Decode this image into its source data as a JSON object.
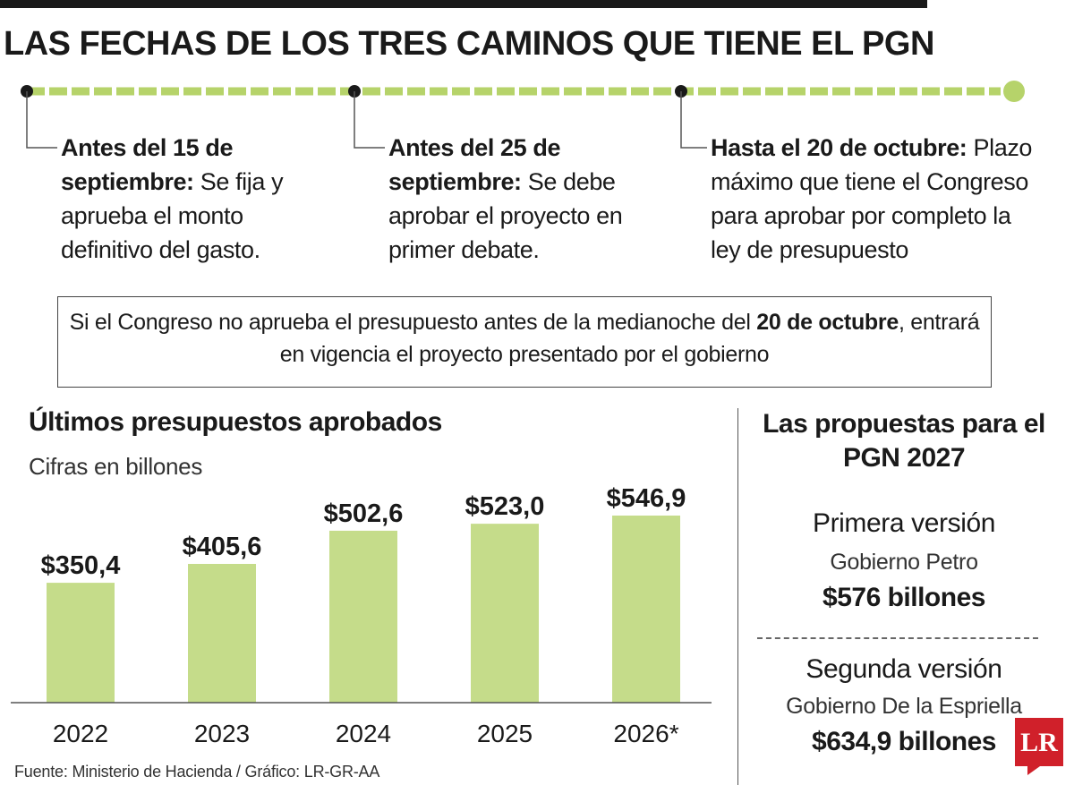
{
  "title": "LAS FECHAS DE LOS TRES CAMINOS QUE TIENE EL PGN",
  "timeline": {
    "steps": [
      {
        "head": "Antes del 15 de septiembre:",
        "body": " Se fija y aprueba el monto definitivo del gasto."
      },
      {
        "head": "Antes del 25 de septiembre:",
        "body": " Se debe aprobar el proyecto en primer debate."
      },
      {
        "head": "Hasta el 20 de octubre:",
        "body": " Plazo máximo que tiene el Congreso para aprobar por completo la ley de presupuesto"
      }
    ]
  },
  "note": {
    "part1": "Si el Congreso no aprueba el presupuesto antes de la medianoche del ",
    "bold": "20 de octubre",
    "part2": ", entrará en vigencia el proyecto presentado por el gobierno"
  },
  "chart_data": {
    "type": "bar",
    "title": "Últimos presupuestos aprobados",
    "subtitle": "Cifras en billones",
    "categories": [
      "2022",
      "2023",
      "2024",
      "2025",
      "2026*"
    ],
    "values": [
      350.4,
      405.6,
      502.6,
      523.0,
      546.9
    ],
    "value_labels": [
      "$350,4",
      "$405,6",
      "$502,6",
      "$523,0",
      "$546,9"
    ],
    "ylim": [
      0,
      546.9
    ],
    "bar_color": "#c5dc8a",
    "grid": false
  },
  "proposals": {
    "title": "Las propuestas para el PGN 2027",
    "first": {
      "label": "Primera versión",
      "author": "Gobierno Petro",
      "amount": "$576 billones"
    },
    "second": {
      "label": "Segunda versión",
      "author": "Gobierno De la Espriella",
      "amount": "$634,9 billones"
    }
  },
  "source": "Fuente: Ministerio de Hacienda / Gráfico: LR-GR-AA",
  "logo": "LR",
  "colors": {
    "accent": "#c5dc8a",
    "timeline": "#b6d36a",
    "logo": "#d0202a"
  }
}
